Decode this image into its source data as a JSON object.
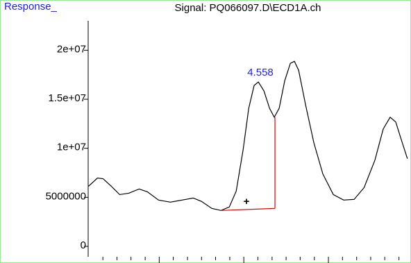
{
  "chart_data": {
    "type": "line",
    "title": "Signal: PQ066097.D\\ECD1A.ch",
    "y_label": "Response_",
    "annotation": "4.558",
    "marker": "+",
    "x": [
      3.582,
      3.635,
      3.668,
      3.717,
      3.766,
      3.82,
      3.881,
      3.93,
      3.996,
      4.066,
      4.135,
      4.201,
      4.25,
      4.311,
      4.365,
      4.414,
      4.455,
      4.496,
      4.529,
      4.561,
      4.586,
      4.619,
      4.652,
      4.68,
      4.709,
      4.742,
      4.775,
      4.799,
      4.824,
      4.865,
      4.914,
      4.967,
      5.029,
      5.09,
      5.152,
      5.211,
      5.275,
      5.324,
      5.365,
      5.398,
      5.43,
      5.467
    ],
    "series": [
      {
        "color": "#000000",
        "values": [
          6130000,
          6970000,
          6900000,
          6130000,
          5280000,
          5420000,
          5850000,
          5560000,
          4720000,
          4510000,
          4720000,
          4930000,
          4580000,
          3870000,
          3660000,
          4010000,
          5630000,
          9860000,
          14080000,
          16410000,
          16760000,
          15850000,
          14080000,
          13170000,
          14080000,
          16900000,
          18660000,
          18870000,
          17960000,
          14440000,
          10560000,
          7390000,
          5280000,
          4720000,
          4790000,
          5990000,
          8800000,
          11970000,
          13170000,
          12680000,
          10920000,
          8940000
        ]
      }
    ],
    "baseline": {
      "color": "#e00000",
      "x": [
        4.365,
        4.684
      ],
      "values": [
        3660000,
        3870000
      ],
      "peak_top": 13170000
    },
    "xlim": [
      3.58,
      5.48
    ],
    "xticks": [
      4.0,
      4.5,
      5.0
    ],
    "xminor_ticks": [
      3.667,
      3.75,
      3.833,
      3.917,
      4.083,
      4.167,
      4.25,
      4.333,
      4.417,
      4.583,
      4.667,
      4.75,
      4.833,
      4.917,
      5.083,
      5.167,
      5.25,
      5.333,
      5.417
    ],
    "ylim": [
      -1060000,
      23000000
    ],
    "yticks": [
      0,
      5000000,
      {
        "value": 10000000,
        "label": "1e+07"
      },
      {
        "value": 15000000,
        "label": "1.5e+07"
      },
      {
        "value": 20000000,
        "label": "2e+07"
      }
    ],
    "annotation_color": "#1a1aff"
  }
}
